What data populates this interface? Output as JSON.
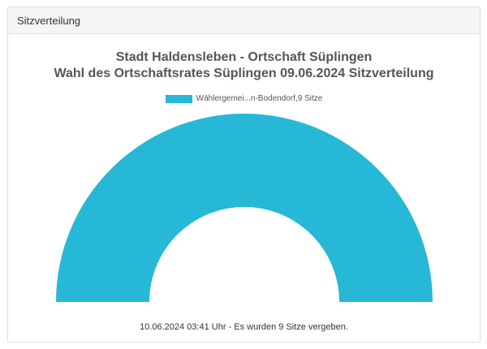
{
  "panel": {
    "heading": "Sitzverteilung"
  },
  "chart_data": {
    "type": "pie",
    "variant": "semi-donut",
    "title": "Stadt Haldensleben - Ortschaft Süplingen",
    "subtitle": "Wahl des Ortschaftsrates Süplingen 09.06.2024 Sitzverteilung",
    "legend_position": "top",
    "categories": [
      "Wählergemei...n-Bodendorf,9 Sitze"
    ],
    "values": [
      9
    ],
    "colors": [
      "#26b8d6"
    ],
    "total_seats": 9
  },
  "footer": {
    "note": "10.06.2024 03:41 Uhr - Es wurden 9 Sitze vergeben."
  }
}
